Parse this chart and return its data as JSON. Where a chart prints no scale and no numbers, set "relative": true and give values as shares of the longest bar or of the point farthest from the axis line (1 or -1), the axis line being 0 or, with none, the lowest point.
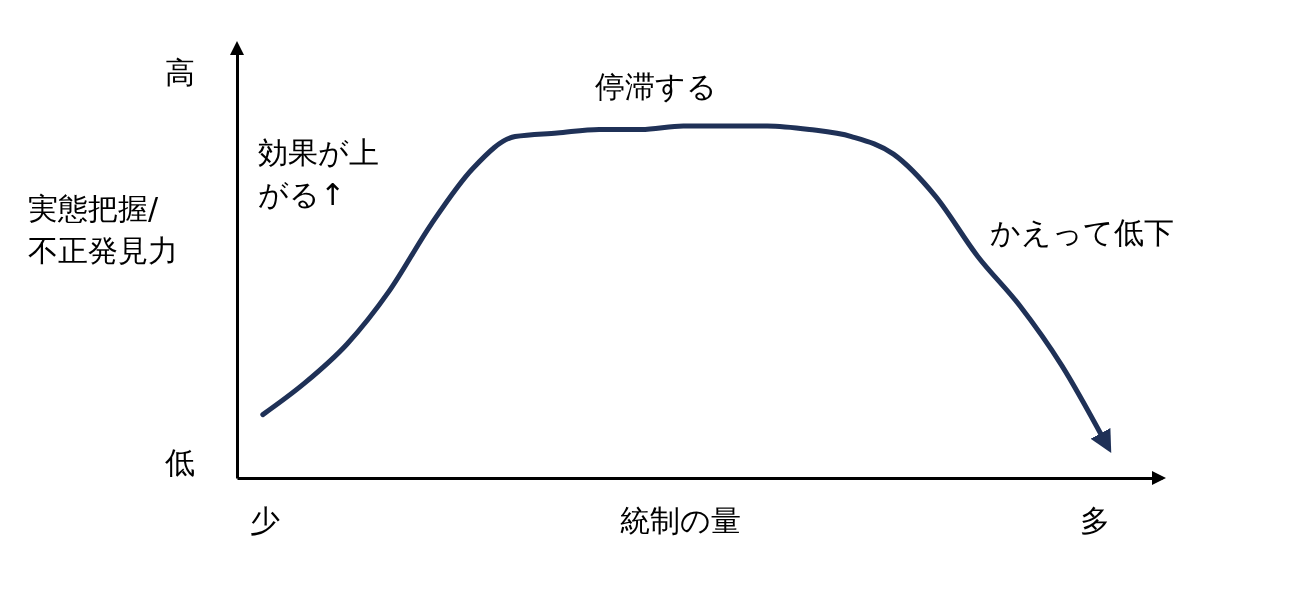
{
  "chart_data": {
    "type": "line",
    "relative": true,
    "xlabel": "統制の量",
    "ylabel": "実態把握/不正発見力",
    "annotations": [
      "高",
      "低",
      "少",
      "多",
      "停滞する",
      "効果が上がる↑",
      "かえって低下"
    ],
    "categories": [
      null,
      null,
      null,
      null,
      null,
      null,
      null,
      null,
      null,
      null,
      null,
      null,
      null,
      null,
      null,
      null,
      null,
      null,
      null,
      null,
      null
    ],
    "series": [
      {
        "color": "#1f3157",
        "values": [
          0.18,
          0.27,
          0.38,
          0.53,
          0.72,
          0.88,
          0.97,
          0.98,
          0.99,
          0.99,
          1,
          1,
          1,
          0.99,
          0.97,
          0.92,
          0.8,
          0.63,
          0.49,
          0.32,
          0.11
        ]
      }
    ]
  }
}
